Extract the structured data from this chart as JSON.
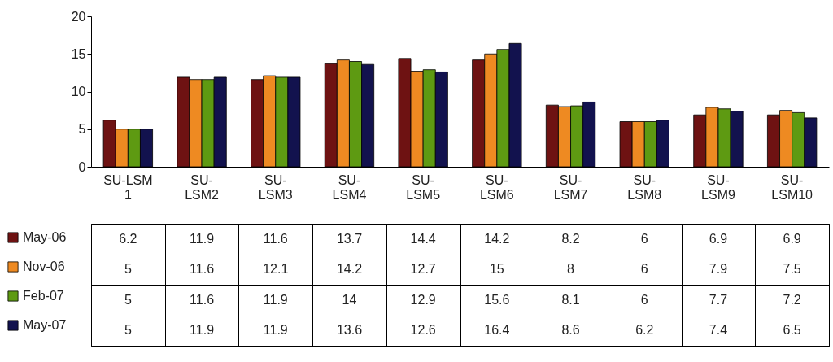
{
  "chart_data": {
    "type": "bar",
    "categories": [
      "SU-LSM 1",
      "SU-LSM2",
      "SU-LSM3",
      "SU-LSM4",
      "SU-LSM5",
      "SU-LSM6",
      "SU-LSM7",
      "SU-LSM8",
      "SU-LSM9",
      "SU-LSM10"
    ],
    "series": [
      {
        "name": "May-06",
        "color": "#6e1212",
        "values": [
          6.2,
          11.9,
          11.6,
          13.7,
          14.4,
          14.2,
          8.2,
          6,
          6.9,
          6.9
        ]
      },
      {
        "name": "Nov-06",
        "color": "#ee8a22",
        "values": [
          5,
          11.6,
          12.1,
          14.2,
          12.7,
          15,
          8,
          6,
          7.9,
          7.5
        ]
      },
      {
        "name": "Feb-07",
        "color": "#5e9a12",
        "values": [
          5,
          11.6,
          11.9,
          14,
          12.9,
          15.6,
          8.1,
          6,
          7.7,
          7.2
        ]
      },
      {
        "name": "May-07",
        "color": "#12124e",
        "values": [
          5,
          11.9,
          11.9,
          13.6,
          12.6,
          16.4,
          8.6,
          6.2,
          7.4,
          6.5
        ]
      }
    ],
    "ylim": [
      0,
      20
    ],
    "yticks": [
      0,
      5,
      10,
      15,
      20
    ],
    "data_labels": true,
    "legend": "bottom",
    "grid": false
  }
}
